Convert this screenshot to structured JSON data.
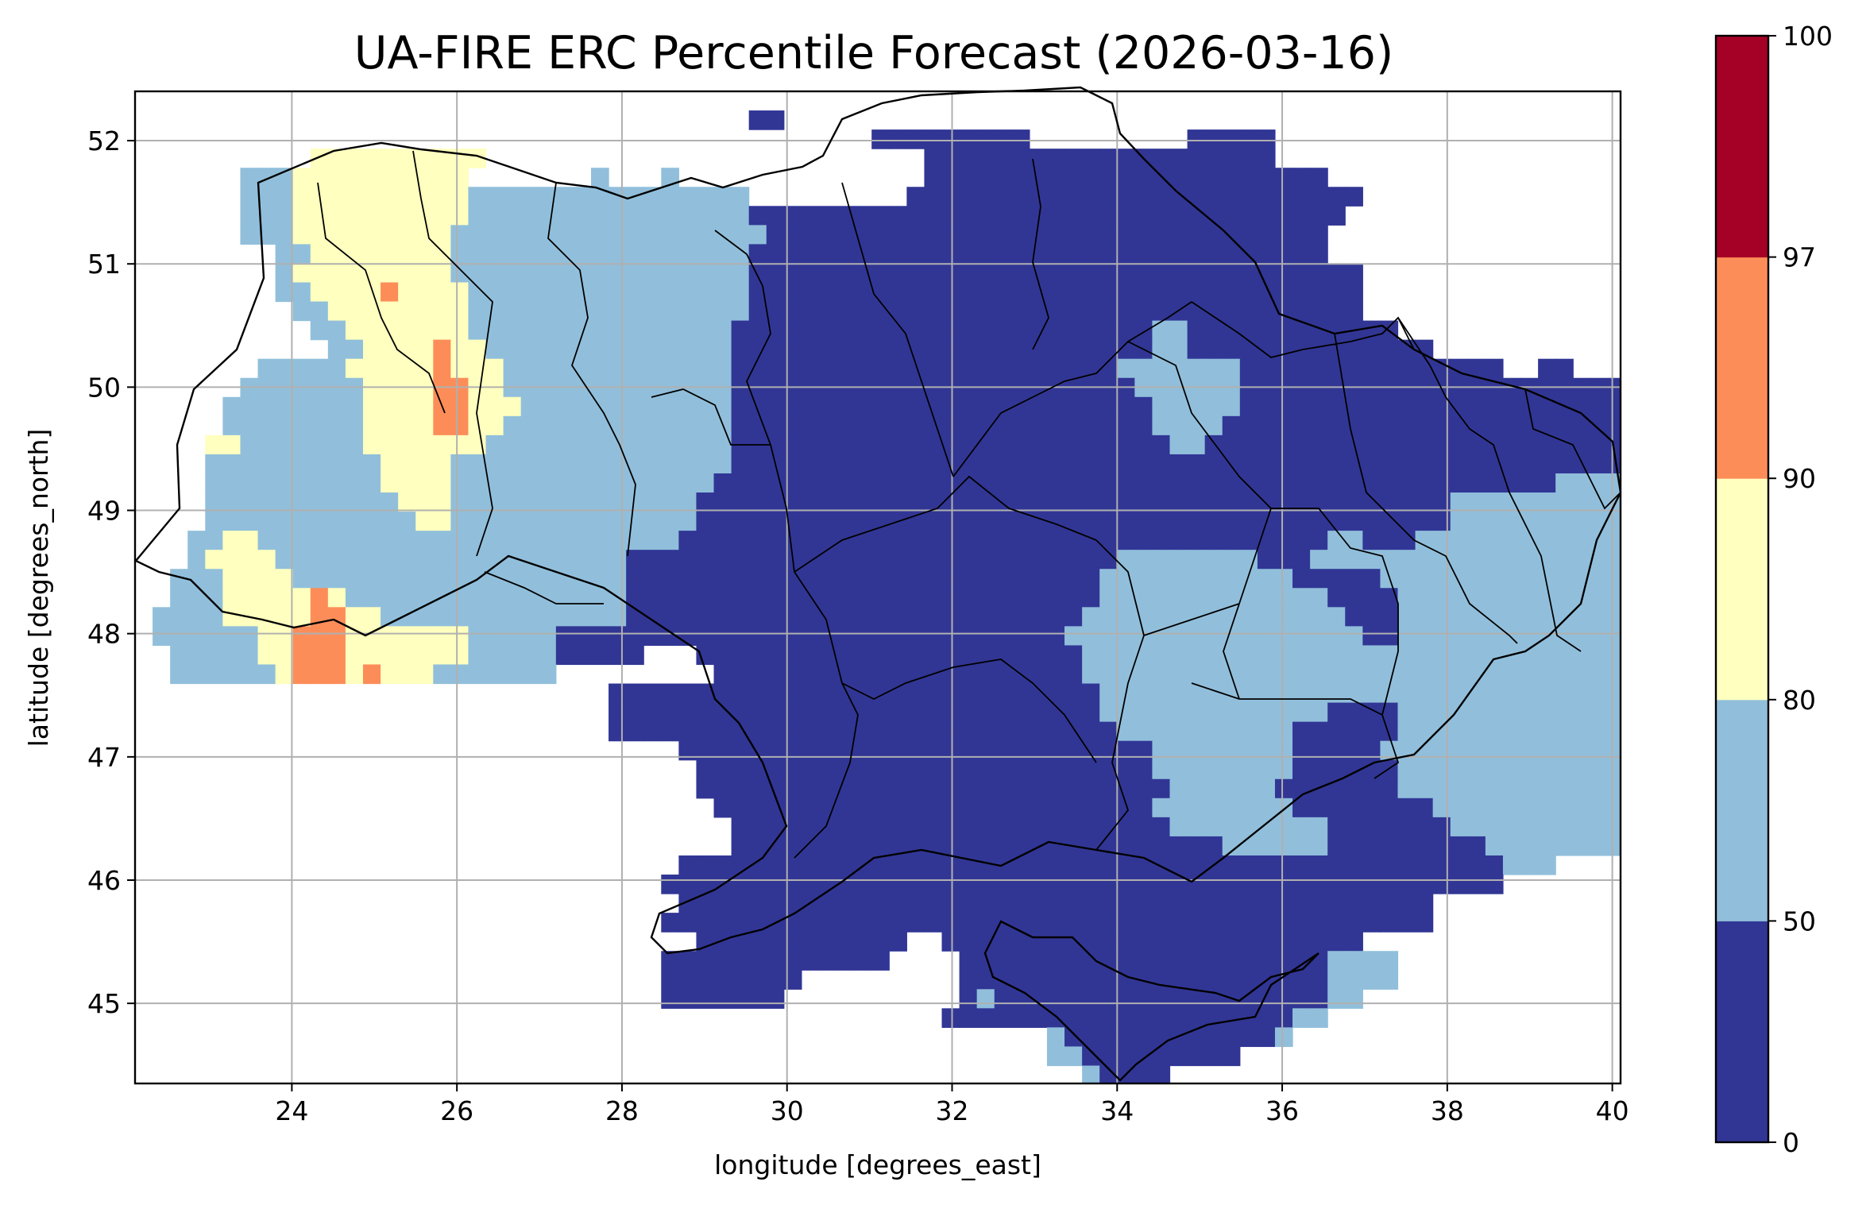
{
  "title": "UA-FIRE ERC Percentile Forecast (2026-03-16)",
  "map": {
    "xlabel": "longitude [degrees_east]",
    "ylabel": "latitude [degrees_north]",
    "xlim": [
      22.1,
      40.1
    ],
    "ylim": [
      44.35,
      52.4
    ],
    "x_ticks": [
      "24",
      "26",
      "28",
      "30",
      "32",
      "34",
      "36",
      "38",
      "40"
    ],
    "y_ticks": [
      "45",
      "46",
      "47",
      "48",
      "49",
      "50",
      "51",
      "52"
    ],
    "grid": true,
    "cell_size_deg": 0.25,
    "category_colors": [
      "#313695",
      "#91bfdb",
      "#ffffbf",
      "#fc8d59",
      "#a50026"
    ],
    "grid_origin": {
      "lon": 22.1,
      "lat": 52.4
    },
    "rows": [
      "........................................................................",
      "...................................RR...............................",
      "..........................................RRRRRRRRR.........RRRRR....",
      "..........YYYYYYYYYY.........................RRRRRRRRRRRRRRRRRRRR...",
      "......BBBYYYYYYYYYY.......B...B..............RRRRRRRRRRRRRRRRRRRRRRR..",
      "......BBBYYYYYYYYYYBBBBBBBBBBBBBBBB.........RRRRRRRRRRRRRRRRRRRRRRRRRR.",
      "......BBBYYYYYYYYYYBBBBBBBBBBBBBBBBRRRRRRRRRRRRRRRRRRRRRRRRRRRRRRRRRR",
      "......BBBYYYYYYYYYBBBBBBBBBBBBBBBBBBRRRRRRRRRRRRRRRRRRRRRRRRRRRRRRRR",
      "........BBYYYYYYYYBBBBBBBBBBBBBBBBBRRRRRRRRRRRRRRRRRRRRRRRRRRRRRRRRR",
      "........BYYYYYYYYYBBBBBBBBBBBBBBBBBRRRRRRRRRRRRRRRRRRRRRRRRRRRRRRRRRRR",
      "........BBYYYYOYYYYBBBBBBBBBBBBBBBBRRRRRRRRRRRRRRRRRRRRRRRRRRRRRRRRRRR",
      ".........BBYYYYYYYYBBBBBBBBBBBBBBBBRRRRRRRRRRRRRRRRRRRRRRRRRRRRRRRRRRR",
      "..........BBYYYYYYYBBBBBBBBBBBBBBBRRRRRRRRRRRRRRRRRRRRRRRRBBRRRRRRRRRRRR",
      "...........BBYYYYOYYBBBBBBBBBBBBBBRRRRRRRRRRRRRRRRRRRRRRRRBBRRRRRRRRRRRRRR",
      ".......BBBBBYYYYYOYYYBBBBBBBBBBBBBRRRRRRRRRRRRRRRRRRRRRRBBBBBBBRRRRRRRRRRRRRRR..RR",
      "......BBBBBBBYYYYOOYYBBBBBBBBBBBBBRRRRRRRRRRRRRRRRRRRRRRRBBBBBBRRRRRRRRRRRRRRRRRRRRRR",
      ".....BBBBBBBBYYYYOOYYYBBBBBBBBBBBBRRRRRRRRRRRRRRRRRRRRRRRRBBBBBRRRRRRRRRRRRRRRRRRRRRRRR",
      ".....BBBBBBBBYYYYOOYYBBBBBBBBBBBBBRRRRRRRRRRRRRRRRRRRRRRRRBBBBRRRRRRRRRRRRRRRRRRRRRRRRR",
      "....YYBBBBBBBYYYYYYYBBBBBBBBBBBBBBRRRRRRRRRRRRRRRRRRRRRRRRRBBRRRRRRRRRRRRRRRRRRRRRRRRRRRR",
      "....BBBBBBBBBBYYYYBBBBBBBBBBBBBBBBRRRRRRRRRRRRRRRRRRRRRRRRRRRRRRRRRRRRRRRRRRRRRRRRRRRRRR",
      "....BBBBBBBBBBYYYYBBBBBBBBBBBBBBBRRRRRRRRRRRRRRRRRRRRRRRRRRRRRRRRRRRRRRRRRRRRRRRRBBBBBRRRR",
      "....BBBBBBBBBBBYYYBBBBBBBBBBBBBBRRRRRRRRRRRRRRRRRRRRRRRRRRRRRRRRRRRRRRRRRRRBBBBBBBBBBBBBBBB",
      "....BBBBBBBBBBBBYYBBBBBBBBBBBBBBRRRRRRRRRRRRRRRRRRRRRRRRRRRRRRRRRRRRRRRRRRRBBBBBBBBBBBBBBBBB",
      "...BBYYBBBBBBBBBBBBBBBBBBBBBBBBRRRRRRRRRRRRRRRRRRRRRRRRRRRRRRRRRRRRRBBRRRBBBBBBBBBBBBBBBBBBBBB",
      "...BYYYYBBBBBBBBBBBBBBBBBBBBRRRRRRRRRRRRRRRRRRRRRRRRRRRRBBBBBBBBRRRBBBBBBBBBBBBBBBBBBBBBBBBBB",
      "..BBBYYYYBBBBBBBBBBBBBBBBBBBRRRRRRRRRRRRRRRRRRRRRRRRRRRBBBBBBBBBBBRRRRRBBBBBBBBBBBBBBBBBBBBBB",
      "..BBBYYYYYOYBBBBBBBBBBBBBBBBRRRRRRRRRRRRRRRRRRRRRRRRRRRBBBBBBBBBBBBBRRRRBBBBBBBBBBBBBBBBBBBBB",
      ".BBBBYYYYYOOYYBBBBBBBBBBBBBBRRRRRRRRRRRRRRRRRRRRRRRRRRBBBBBBBBBBBBBBBRRRBBBBBBBBBBBBBBBBBBBBB",
      ".BBBBBBYYOOOYYYYYYYBBBBBRRRRRRRRRRRRRRRRRRRRRRRRRRRRRBBBBBBBBBBBBBBBBBRRBBBBBBBBBBBBBBBBBBBBBB",
      "..BBBBBYYOOOYYYYYYYBBBBBRRRRR...RRRRRRRRRRRRRRRRRRRRRRBBBBBBBBBBBBBBBBBBBBBBBBBBBBBBBBBBBBBBBB",
      "..BBBBBBYOOOYOYYYBBBBBBB.........RRRRRRRRRRRRRRRRRRRRRBBBBBBBBBBBBBBBBBBBBBBBBBBBBBBBBBBBBBBBBB",
      "...........................RRRRRRRRRRRRRRRRRRRRRRRRRRRRBBBBBBBBBBBBBBBBBBBBBBBBBBBBBBBBBBBBBBBB",
      "...........................RRRRRRRRRRRRRRRRRRRRRRRRRRRRBBBBBBBBBBBBBRRRRBBBBBBBBBBBBBBBBBBBBBBBB",
      "...........................RRRRRRRRRRRRRRRRRRRRRRRRRRRRRBBBBBBBBBBRRRRRRBBBBBBBBBBBBBBBBBBBBBBBB",
      "...............................RRRRRRRRRRRRRRRRRRRRRRRRRRRBBBBBBBBRRRRRBBBBBBBBBBBBBBBBBBBBBBBBB",
      "................................RRRRRRRRRRRRRRRRRRRRRRRRRRBBBBBBBBRRRRRRBBBBBBBBBBBBBBBBBBBBBBBB",
      "................................RRRRRRRRRRRRRRRRRRRRRRRRRRRBBBBBBRRRRRRRBBBBBBBBBBBBBBBBBBBBB..",
      ".................................RRRRRRRRRRRRRRRRRRRRRRRRRBBBBBBBBRRRRRRRRBBBBBBBBBBBBBBB.....",
      "..................................RRRRRRRRRRRRRRRRRRRRRRRRRBBBBBBBBBRRRRRRRBBBBBBBBBBBB.......",
      "..................................RRRRRRRRRRRRRRRRRRRRRRRRRRRRBBBBBBRRRRRRRRRBBBBBBBB........",
      "...............................RRRRRRRRRRRRRRRRRRRRRRRRRRRRRRRRRRRRRRRRRRRRRRRBBB...........",
      "..............................RRRRRRRRRRRRRRRRRRRRRRRRRRRRRRRRRRRRRRRRRRRRRRRR..............",
      "...............................RRRRRRRRRRRRRRRRRRRRRRRRRRRRRRRRRRRRRRRRRRR..................",
      "..............................RRRRRRRRRRRRRRRRRRRRRRRRRRRRRRRRRRRRRRRRRRRR..................",
      "................................RRRRRRRRRRRR..RRRRRRRRRRRRRRRRRRRRRRRR......................",
      "..............................RRRRRRRRRRRRR....RRRRRRRRRRRRRRRRRRRRRBBBB...................",
      "..............................RRRRRRRR.........RRRRRRRRRRRRRRRRRRRRRBBBB...................",
      "..............................RRRRRRR..........RBRRRRRRRRRRRRRRRRRRRBB....................",
      "..............................................RRRRRRRRRRRRRRRRRRRRBB......................",
      "....................................................BRRRRRRRRRRRRB.........................",
      "....................................................BBRRRRRRRRR...........................",
      "......................................................BRRRR................................"
    ]
  },
  "colorbar": {
    "boundaries": [
      0,
      50,
      80,
      90,
      97,
      100
    ],
    "tick_labels": [
      "0",
      "50",
      "80",
      "90",
      "97",
      "100"
    ],
    "colors": [
      "#313695",
      "#91bfdb",
      "#ffffbf",
      "#fc8d59",
      "#a50026"
    ]
  }
}
